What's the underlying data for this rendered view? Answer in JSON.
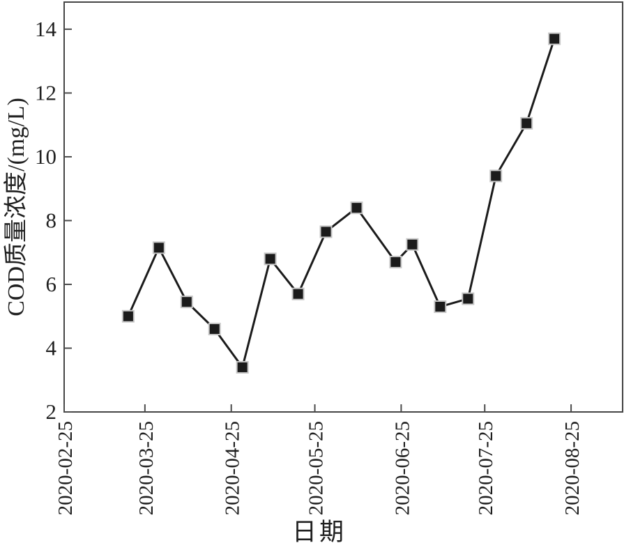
{
  "figure": {
    "background": "#ffffff",
    "ink_color": "#1b1b1b",
    "frame_color": "#454545",
    "tick_color": "#4a4a4a",
    "marker_edge_color": "#c6c6c6"
  },
  "chart_data": {
    "type": "line",
    "title": "",
    "xlabel": "日期",
    "ylabel": "COD质量浓度/(mg/L)",
    "grid": false,
    "legend": "none",
    "x_start_date": "2020-02-25",
    "xlim_days": [
      0,
      200.5
    ],
    "ylim": [
      2,
      14.85
    ],
    "y_ticks": [
      {
        "value": 2,
        "label": "2"
      },
      {
        "value": 4,
        "label": "4"
      },
      {
        "value": 6,
        "label": "6"
      },
      {
        "value": 8,
        "label": "8"
      },
      {
        "value": 10,
        "label": "10"
      },
      {
        "value": 12,
        "label": "12"
      },
      {
        "value": 14,
        "label": "14"
      }
    ],
    "x_ticks": [
      {
        "date": "2020-02-25",
        "label": "2020-02-25"
      },
      {
        "date": "2020-03-25",
        "label": "2020-03-25"
      },
      {
        "date": "2020-04-25",
        "label": "2020-04-25"
      },
      {
        "date": "2020-05-25",
        "label": "2020-05-25"
      },
      {
        "date": "2020-06-25",
        "label": "2020-06-25"
      },
      {
        "date": "2020-07-25",
        "label": "2020-07-25"
      },
      {
        "date": "2020-08-25",
        "label": "2020-08-25"
      }
    ],
    "series": [
      {
        "name": "COD质量浓度",
        "marker": "square",
        "points": [
          {
            "date": "2020-03-19",
            "value": 5.0
          },
          {
            "date": "2020-03-30",
            "value": 7.15
          },
          {
            "date": "2020-04-09",
            "value": 5.45
          },
          {
            "date": "2020-04-19",
            "value": 4.6
          },
          {
            "date": "2020-04-29",
            "value": 3.4
          },
          {
            "date": "2020-05-09",
            "value": 6.8
          },
          {
            "date": "2020-05-19",
            "value": 5.7
          },
          {
            "date": "2020-05-29",
            "value": 7.65
          },
          {
            "date": "2020-06-09",
            "value": 8.4
          },
          {
            "date": "2020-06-23",
            "value": 6.7
          },
          {
            "date": "2020-06-29",
            "value": 7.25
          },
          {
            "date": "2020-07-09",
            "value": 5.3
          },
          {
            "date": "2020-07-19",
            "value": 5.55
          },
          {
            "date": "2020-07-29",
            "value": 9.4
          },
          {
            "date": "2020-08-09",
            "value": 11.05
          },
          {
            "date": "2020-08-19",
            "value": 13.7
          }
        ]
      }
    ]
  }
}
